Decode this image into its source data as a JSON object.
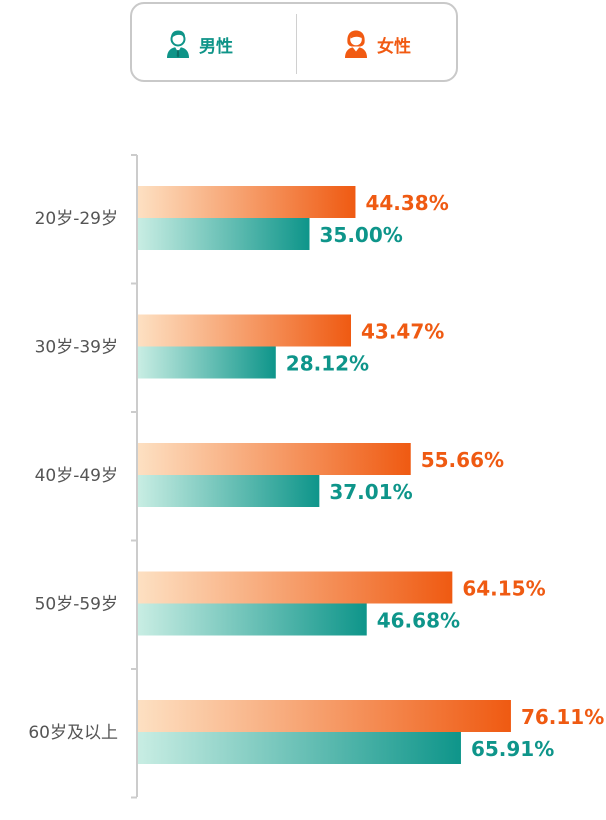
{
  "legend": {
    "male_label": "男性",
    "female_label": "女性",
    "male_icon": "male-user-icon",
    "female_icon": "female-user-icon"
  },
  "colors": {
    "female_dark": "#ef5a12",
    "female_light": "#fde0c2",
    "male_dark": "#0e958a",
    "male_light": "#c8ede3",
    "axis": "#cccccc"
  },
  "chart_data": {
    "type": "bar",
    "orientation": "horizontal",
    "categories": [
      "20岁-29岁",
      "30岁-39岁",
      "40岁-49岁",
      "50岁-59岁",
      "60岁及以上"
    ],
    "series": [
      {
        "name": "女性",
        "values": [
          44.38,
          43.47,
          55.66,
          64.15,
          76.11
        ],
        "labels": [
          "44.38%",
          "43.47%",
          "55.66%",
          "64.15%",
          "76.11%"
        ]
      },
      {
        "name": "男性",
        "values": [
          35.0,
          28.12,
          37.01,
          46.68,
          65.91
        ],
        "labels": [
          "35.00%",
          "28.12%",
          "37.01%",
          "46.68%",
          "65.91%"
        ]
      }
    ],
    "xlim": [
      0,
      100
    ],
    "legend_position": "top",
    "grid": false
  }
}
